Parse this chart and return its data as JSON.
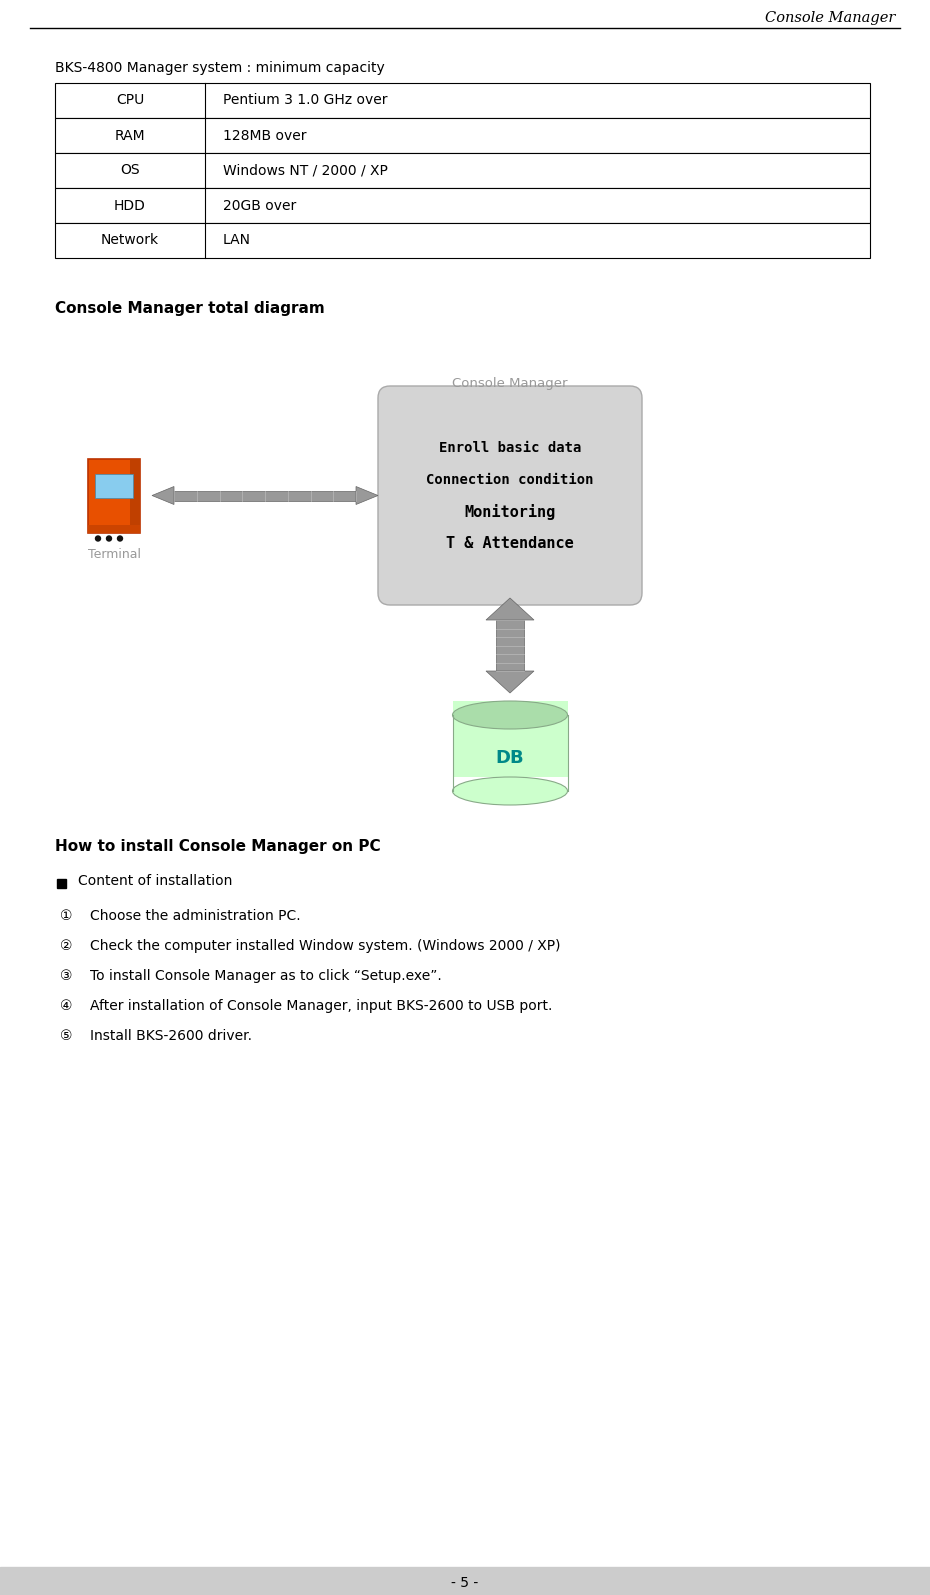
{
  "title_header": "Console Manager",
  "page_number": "- 5 -",
  "section1_title": "BKS-4800 Manager system : minimum capacity",
  "table_rows": [
    [
      "CPU",
      "Pentium 3 1.0 GHz over"
    ],
    [
      "RAM",
      "128MB over"
    ],
    [
      "OS",
      "Windows NT / 2000 / XP"
    ],
    [
      "HDD",
      "20GB over"
    ],
    [
      "Network",
      "LAN"
    ]
  ],
  "section2_title": "Console Manager total diagram",
  "cm_box_label": "Console Manager",
  "cm_box_lines": [
    "Enroll basic data",
    "Connection condition",
    "Monitoring",
    "T & Attendance"
  ],
  "terminal_label": "Terminal",
  "db_label": "DB",
  "section3_title": "How to install Console Manager on PC",
  "bullet_item": "Content of installation",
  "numbered_items": [
    "①    Choose the administration PC.",
    "②    Check the computer installed Window system. (Windows 2000 / XP)",
    "③    To install Console Manager as to click “Setup.exe”.",
    "④    After installation of Console Manager, input BKS-2600 to USB port.",
    "⑤    Install BKS-2600 driver."
  ],
  "bg_color": "#ffffff",
  "table_border_color": "#000000",
  "header_line_color": "#000000",
  "cm_box_color": "#d4d4d4",
  "db_body_color": "#ccffcc",
  "db_top_color": "#aaddaa",
  "db_label_color": "#008888",
  "terminal_body_color": "#e85000",
  "arrow_color": "#999999",
  "arrow_dark": "#666666",
  "text_color": "#000000",
  "gray_text": "#999999"
}
